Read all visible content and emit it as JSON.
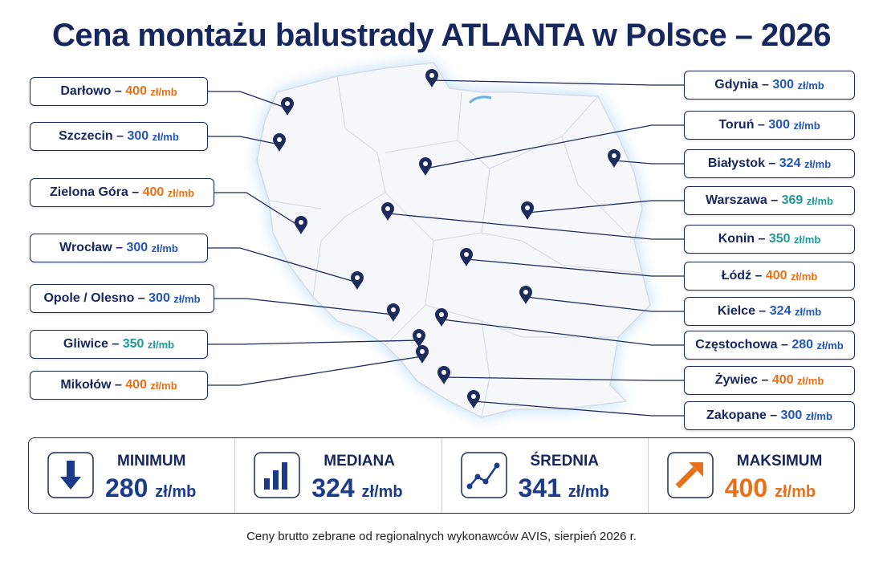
{
  "title": "Cena montażu balustrady ATLANTA w Polsce – 2026",
  "separator": "–",
  "labels": [
    {
      "city": "Darłowo",
      "value": "400",
      "unit": "zł/mb",
      "color": "#e8701a"
    },
    {
      "city": "Szczecin",
      "value": "300",
      "unit": "zł/mb",
      "color": "#2456b8"
    },
    {
      "city": "Zielona Góra",
      "value": "400",
      "unit": "zł/mb",
      "color": "#e8701a"
    },
    {
      "city": "Wrocław",
      "value": "300",
      "unit": "zł/mb",
      "color": "#2456b8"
    },
    {
      "city": "Opole / Olesno",
      "value": "300",
      "unit": "zł/mb",
      "color": "#2456b8"
    },
    {
      "city": "Gliwice",
      "value": "350",
      "unit": "zł/mb",
      "color": "#1f9a94"
    },
    {
      "city": "Mikołów",
      "value": "400",
      "unit": "zł/mb",
      "color": "#e8701a"
    },
    {
      "city": "Gdynia",
      "value": "300",
      "unit": "zł/mb",
      "color": "#2456b8"
    },
    {
      "city": "Toruń",
      "value": "300",
      "unit": "zł/mb",
      "color": "#2456b8"
    },
    {
      "city": "Białystok",
      "value": "324",
      "unit": "zł/mb",
      "color": "#2456b8"
    },
    {
      "city": "Warszawa",
      "value": "369",
      "unit": "zł/mb",
      "color": "#1f9a94"
    },
    {
      "city": "Konin",
      "value": "350",
      "unit": "zł/mb",
      "color": "#1f9a94"
    },
    {
      "city": "Łódź",
      "value": "400",
      "unit": "zł/mb",
      "color": "#e8701a"
    },
    {
      "city": "Kielce",
      "value": "324",
      "unit": "zł/mb",
      "color": "#2456b8"
    },
    {
      "city": "Częstochowa",
      "value": "280",
      "unit": "zł/mb",
      "color": "#2456b8"
    },
    {
      "city": "Żywiec",
      "value": "400",
      "unit": "zł/mb",
      "color": "#e8701a"
    },
    {
      "city": "Zakopane",
      "value": "300",
      "unit": "zł/mb",
      "color": "#2456b8"
    }
  ],
  "stats": [
    {
      "label": "MINIMUM",
      "value": "280",
      "unit": "zł/mb",
      "color": "#1b3b8a"
    },
    {
      "label": "MEDIANA",
      "value": "324",
      "unit": "zł/mb",
      "color": "#1b3b8a"
    },
    {
      "label": "ŚREDNIA",
      "value": "341",
      "unit": "zł/mb",
      "color": "#1b3b8a"
    },
    {
      "label": "MAKSIMUM",
      "value": "400",
      "unit": "zł/mb",
      "color": "#e8701a"
    }
  ],
  "footer": "Ceny brutto zebrane od regionalnych wykonawców AVIS, sierpień 2026 r."
}
